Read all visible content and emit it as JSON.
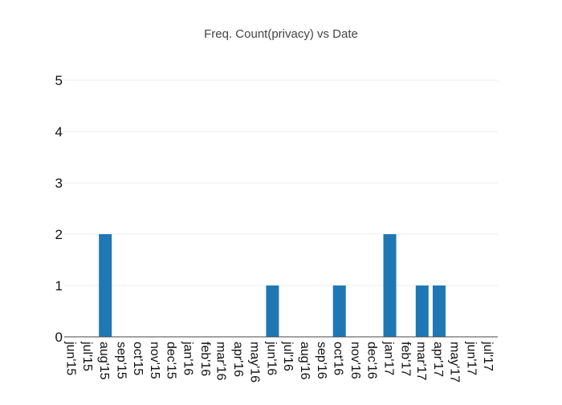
{
  "chart_data": {
    "type": "bar",
    "title": "Freq. Count(privacy)  vs Date",
    "xlabel": "",
    "ylabel": "",
    "categories": [
      "jun'15",
      "jul'15",
      "aug'15",
      "sep'15",
      "oct'15",
      "nov'15",
      "dec'15",
      "jan'16",
      "feb'16",
      "mar'16",
      "apr'16",
      "may'16",
      "jun'16",
      "jul'16",
      "aug'16",
      "sep'16",
      "oct'16",
      "nov'16",
      "dec'16",
      "jan'17",
      "feb'17",
      "mar'17",
      "apr'17",
      "may'17",
      "jun'17",
      "jul'17"
    ],
    "x_range": [
      "2015-06-01",
      "2017-07-01"
    ],
    "bars": [
      {
        "date": "2015-08-01",
        "value": 2
      },
      {
        "date": "2016-06-01",
        "value": 1
      },
      {
        "date": "2016-10-01",
        "value": 1
      },
      {
        "date": "2017-01-01",
        "value": 2
      },
      {
        "date": "2017-03-01",
        "value": 1
      },
      {
        "date": "2017-04-01",
        "value": 1
      }
    ],
    "yticks": [
      0,
      1,
      2,
      3,
      4,
      5
    ],
    "ylim": [
      0,
      5
    ],
    "grid": true,
    "colors": {
      "bar": "#1f77b4",
      "grid": "#eeeeee",
      "axis": "#444444",
      "title": "#444444"
    }
  }
}
